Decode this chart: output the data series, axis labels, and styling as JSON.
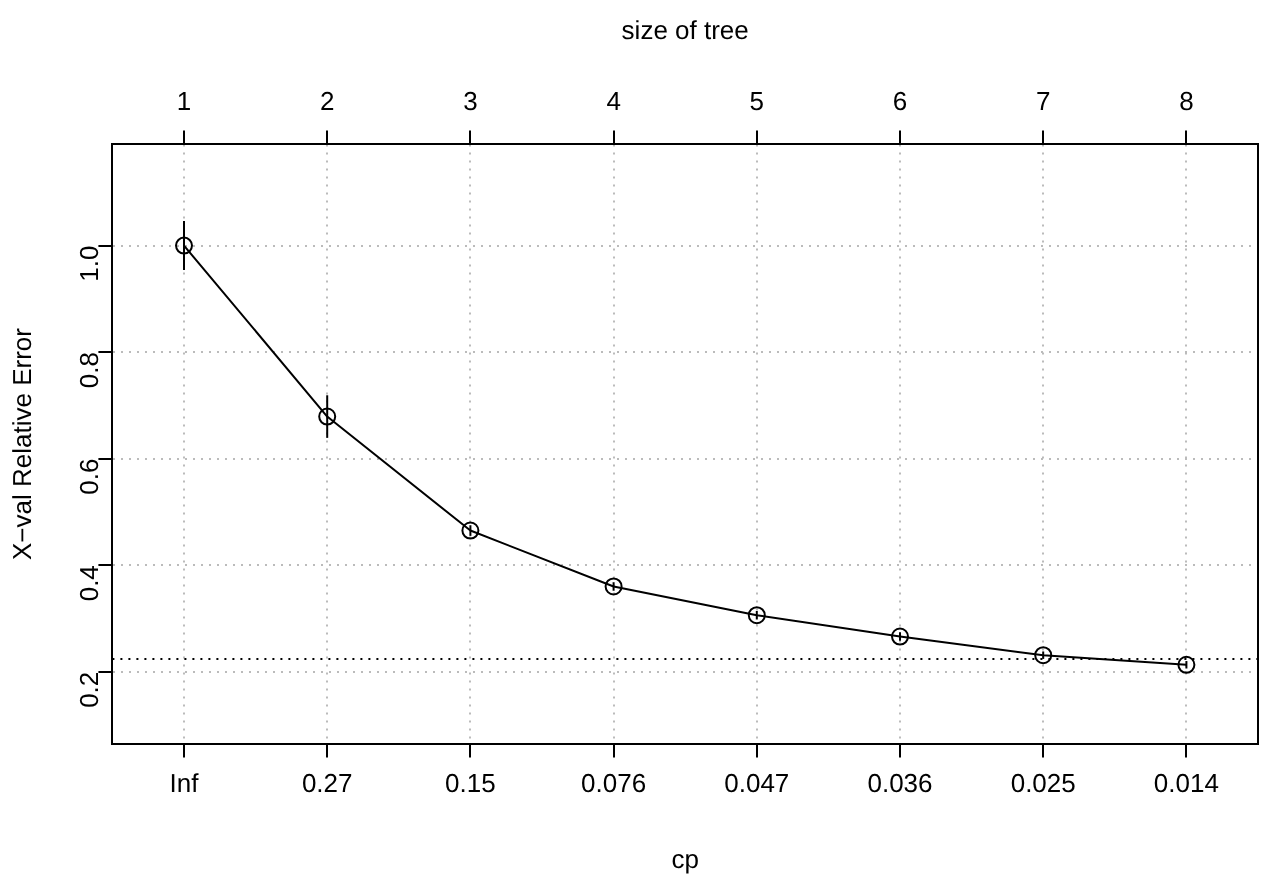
{
  "chart_data": {
    "type": "line",
    "xlabel": "cp",
    "ylabel": "X−val Relative Error",
    "x2label": "size of tree",
    "categories": [
      "Inf",
      "0.27",
      "0.15",
      "0.076",
      "0.047",
      "0.036",
      "0.025",
      "0.014"
    ],
    "series": [
      {
        "color": "#000000",
        "values": [
          1.0,
          0.679,
          0.465,
          0.36,
          0.306,
          0.266,
          0.231,
          0.213
        ],
        "errors": [
          0.046,
          0.04,
          0.01,
          0.008,
          0.008,
          0.008,
          0.007,
          0.007
        ]
      }
    ],
    "x2lim": [
      0.5,
      8.5
    ],
    "x2ticks": [
      1,
      2,
      3,
      4,
      5,
      6,
      7,
      8
    ],
    "ylim": [
      0.065,
      1.19
    ],
    "yticks": [
      {
        "value": 0.2,
        "label": "0.2"
      },
      {
        "value": 0.4,
        "label": "0.4"
      },
      {
        "value": 0.6,
        "label": "0.6"
      },
      {
        "value": 0.8,
        "label": "0.8"
      },
      {
        "value": 1.0,
        "label": "1.0"
      }
    ],
    "ref_lines": [
      {
        "axis": "y",
        "value": 0.224,
        "line_style": "dotted",
        "color": "#000000"
      }
    ],
    "grid": true,
    "legend": false,
    "marker": "circle",
    "line_style": "solid"
  }
}
